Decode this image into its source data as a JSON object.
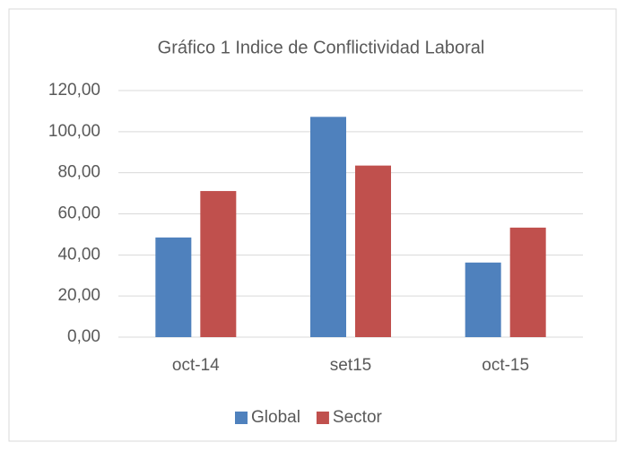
{
  "chart_data": {
    "type": "bar",
    "title": "Gráfico 1 Indice de Conflictividad Laboral",
    "categories": [
      "oct-14",
      "set15",
      "oct-15"
    ],
    "series": [
      {
        "name": "Global",
        "color": "#4f81bd",
        "values": [
          48.5,
          107.2,
          36.3
        ]
      },
      {
        "name": "Sector",
        "color": "#c0504d",
        "values": [
          71.1,
          83.5,
          53.3
        ]
      }
    ],
    "ylim": [
      0,
      120
    ],
    "yticks": [
      {
        "value": 0,
        "label": "0,00"
      },
      {
        "value": 20,
        "label": "20,00"
      },
      {
        "value": 40,
        "label": "40,00"
      },
      {
        "value": 60,
        "label": "60,00"
      },
      {
        "value": 80,
        "label": "80,00"
      },
      {
        "value": 100,
        "label": "100,00"
      },
      {
        "value": 120,
        "label": "120,00"
      }
    ],
    "grid": true,
    "legend": "bottom"
  }
}
